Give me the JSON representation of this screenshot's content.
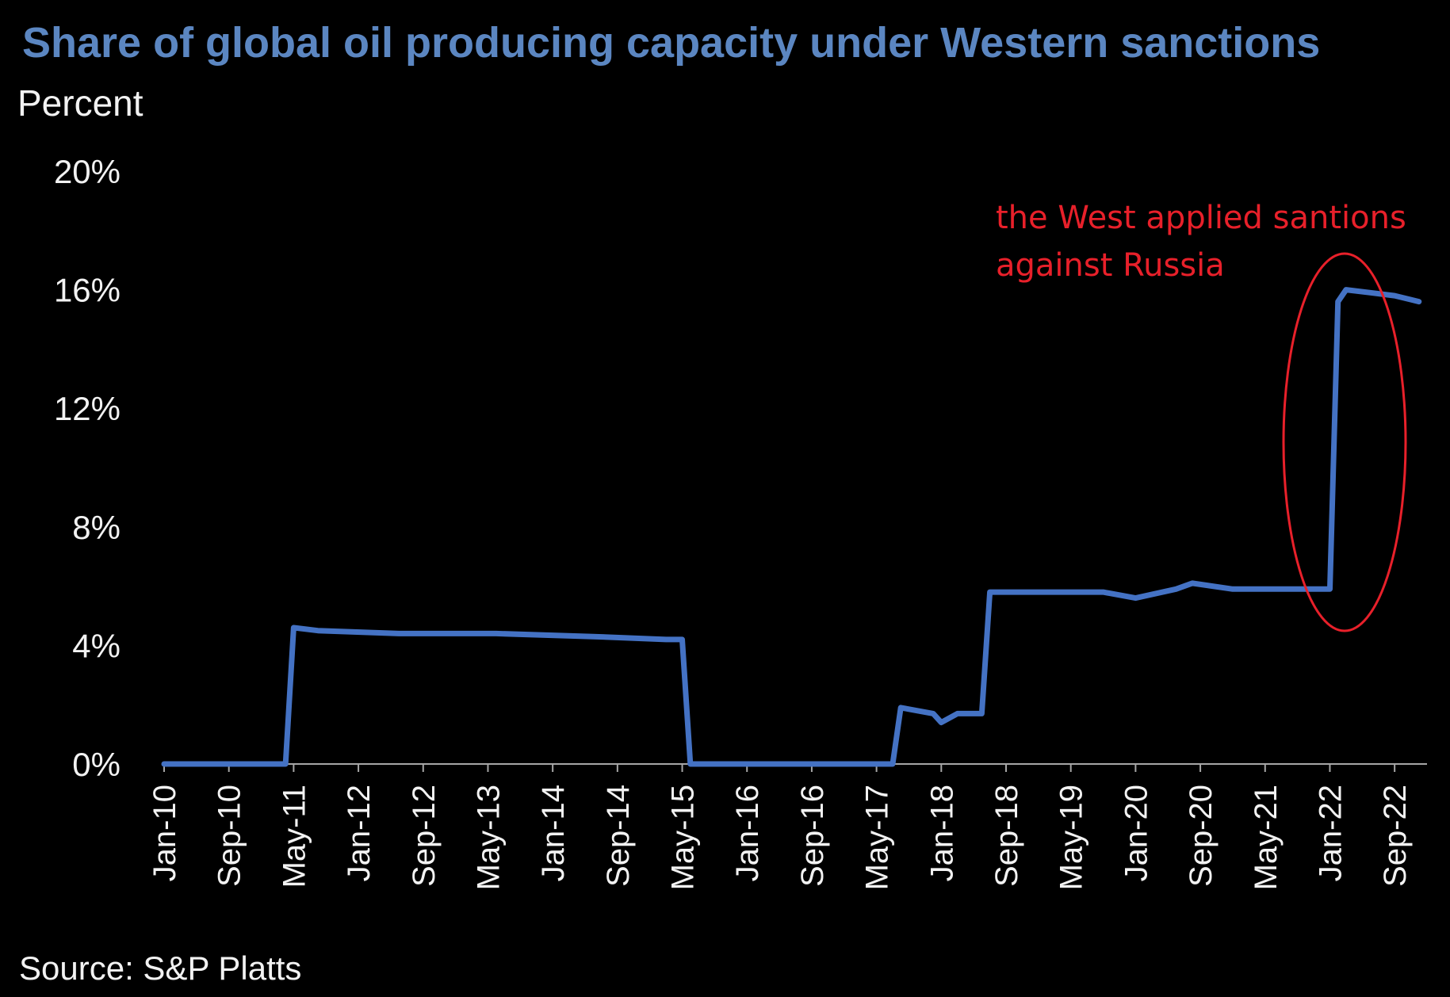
{
  "colors": {
    "background": "#000000",
    "title": "#5B86C1",
    "text": "#F2F2F2",
    "series": "#4472C4",
    "axis": "#A6A6A6",
    "annotation": "#E8202A"
  },
  "chart_data": {
    "type": "line",
    "title": "Share of global oil producing capacity under Western sanctions",
    "ylabel": "Percent",
    "ylim": [
      0,
      20
    ],
    "yticks": [
      "0%",
      "4%",
      "8%",
      "12%",
      "16%",
      "20%"
    ],
    "xticks": [
      "Jan-10",
      "Sep-10",
      "May-11",
      "Jan-12",
      "Sep-12",
      "May-13",
      "Jan-14",
      "Sep-14",
      "May-15",
      "Jan-16",
      "Sep-16",
      "May-17",
      "Jan-18",
      "Sep-18",
      "May-19",
      "Jan-20",
      "Sep-20",
      "May-21",
      "Jan-22",
      "Sep-22"
    ],
    "grid": false,
    "legend": "none",
    "source": "Source: S&P Platts",
    "annotation": [
      "the West applied santions",
      "against Russia"
    ],
    "series": [
      {
        "x": [
          "2010-01",
          "2011-04",
          "2011-05",
          "2011-08",
          "2012-06",
          "2013-06",
          "2014-06",
          "2015-03",
          "2015-05",
          "2015-06",
          "2016-06",
          "2017-06",
          "2017-07",
          "2017-08",
          "2017-12",
          "2018-01",
          "2018-03",
          "2018-06",
          "2018-07",
          "2018-09",
          "2019-01",
          "2019-09",
          "2020-01",
          "2020-06",
          "2020-08",
          "2021-01",
          "2021-06",
          "2022-01",
          "2022-02",
          "2022-03",
          "2022-06",
          "2022-09",
          "2022-12"
        ],
        "values": [
          0.0,
          0.0,
          4.6,
          4.5,
          4.4,
          4.4,
          4.3,
          4.2,
          4.2,
          0.0,
          0.0,
          0.0,
          0.0,
          1.9,
          1.7,
          1.4,
          1.7,
          1.7,
          5.8,
          5.8,
          5.8,
          5.8,
          5.6,
          5.9,
          6.1,
          5.9,
          5.9,
          5.9,
          15.6,
          16.0,
          15.9,
          15.8,
          15.6
        ]
      }
    ]
  }
}
